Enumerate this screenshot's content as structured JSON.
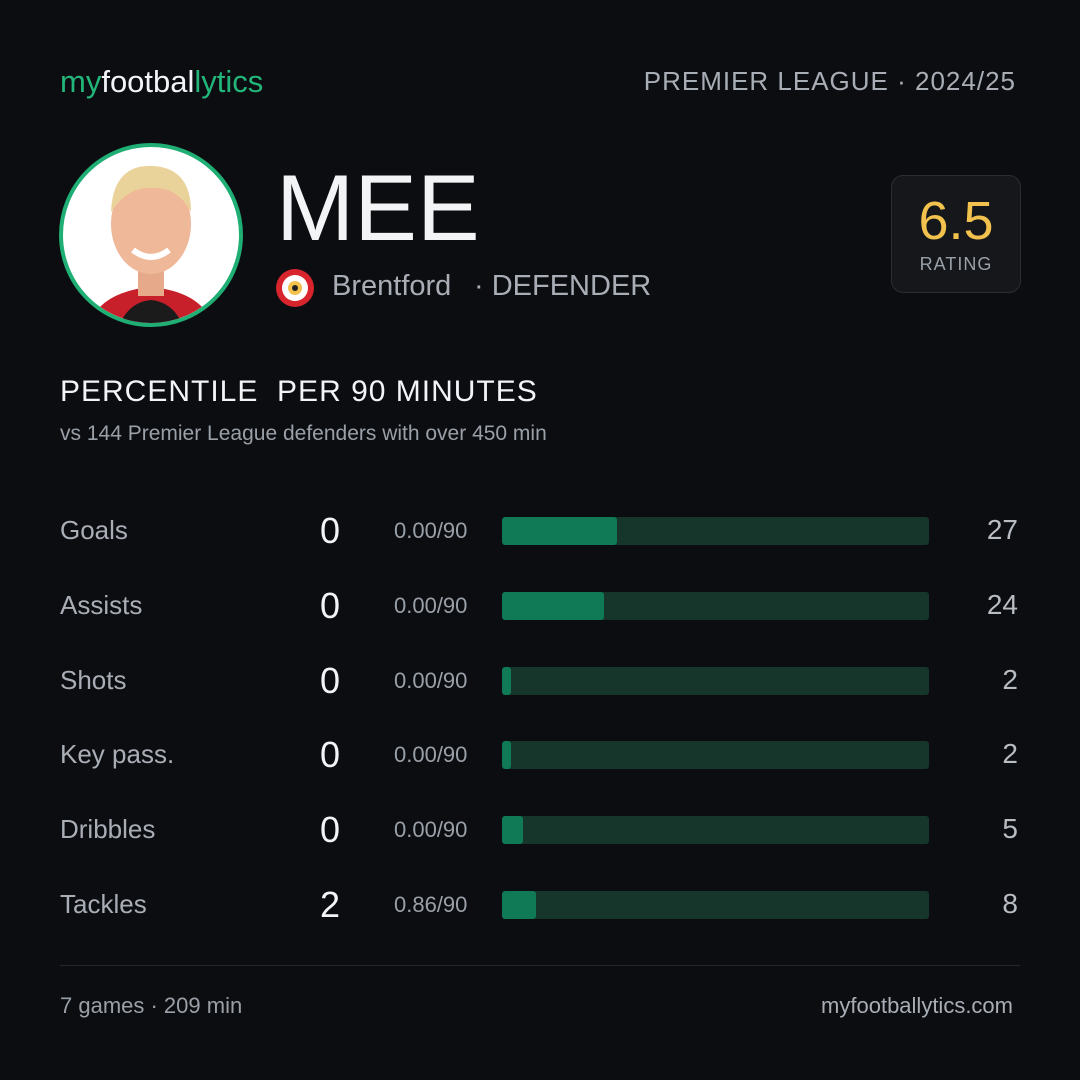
{
  "header": {
    "brand": [
      "my",
      "footbal",
      "lytics"
    ],
    "league": "PREMIER LEAGUE · 2024/25"
  },
  "player": {
    "name": "MEE",
    "club": "Brentford",
    "position": "· DEFENDER",
    "rating": 6.5,
    "rating_label": "RATING"
  },
  "section": {
    "title": "PERCENTILE  PER 90 MINUTES",
    "subtitle": "vs 144 Premier League defenders with over 450 min"
  },
  "stats": {
    "xlim": [
      0,
      100
    ],
    "rows": [
      {
        "label": "Goals",
        "total": 0,
        "per90": "0.00/90",
        "percentile": 27
      },
      {
        "label": "Assists",
        "total": 0,
        "per90": "0.00/90",
        "percentile": 24
      },
      {
        "label": "Shots",
        "total": 0,
        "per90": "0.00/90",
        "percentile": 2
      },
      {
        "label": "Key pass.",
        "total": 0,
        "per90": "0.00/90",
        "percentile": 2
      },
      {
        "label": "Dribbles",
        "total": 0,
        "per90": "0.00/90",
        "percentile": 5
      },
      {
        "label": "Tackles",
        "total": 2,
        "per90": "0.86/90",
        "percentile": 8
      }
    ]
  },
  "footer": {
    "summary": "7 games · 209 min",
    "site": "myfootballytics.com"
  }
}
